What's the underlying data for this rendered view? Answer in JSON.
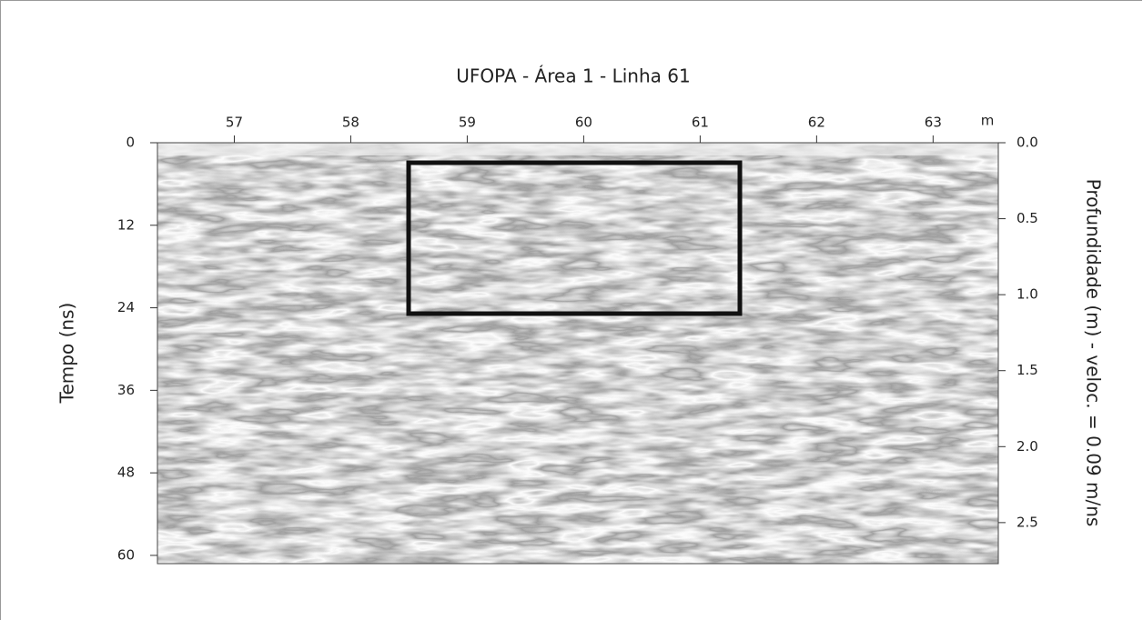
{
  "chart_data": {
    "type": "radargram",
    "title": "UFOPA - Área 1 - Linha 61",
    "x_label": "m",
    "y_label": "Tempo (ns)",
    "y2_label": "Profundidade (m) - veloc. = 0.09 m/ns",
    "xlim": [
      56.34,
      63.56
    ],
    "xticks": [
      57,
      58,
      59,
      60,
      61,
      62,
      63
    ],
    "ylim": [
      0,
      61.2
    ],
    "yticks": [
      0,
      12,
      24,
      36,
      48,
      60
    ],
    "y2lim": [
      0,
      2.77
    ],
    "y2ticks": [
      {
        "value": 0,
        "label": "0.0"
      },
      0.5,
      {
        "value": 1,
        "label": "1.0"
      },
      1.5,
      {
        "value": 2,
        "label": "2.0"
      },
      2.5
    ]
  }
}
